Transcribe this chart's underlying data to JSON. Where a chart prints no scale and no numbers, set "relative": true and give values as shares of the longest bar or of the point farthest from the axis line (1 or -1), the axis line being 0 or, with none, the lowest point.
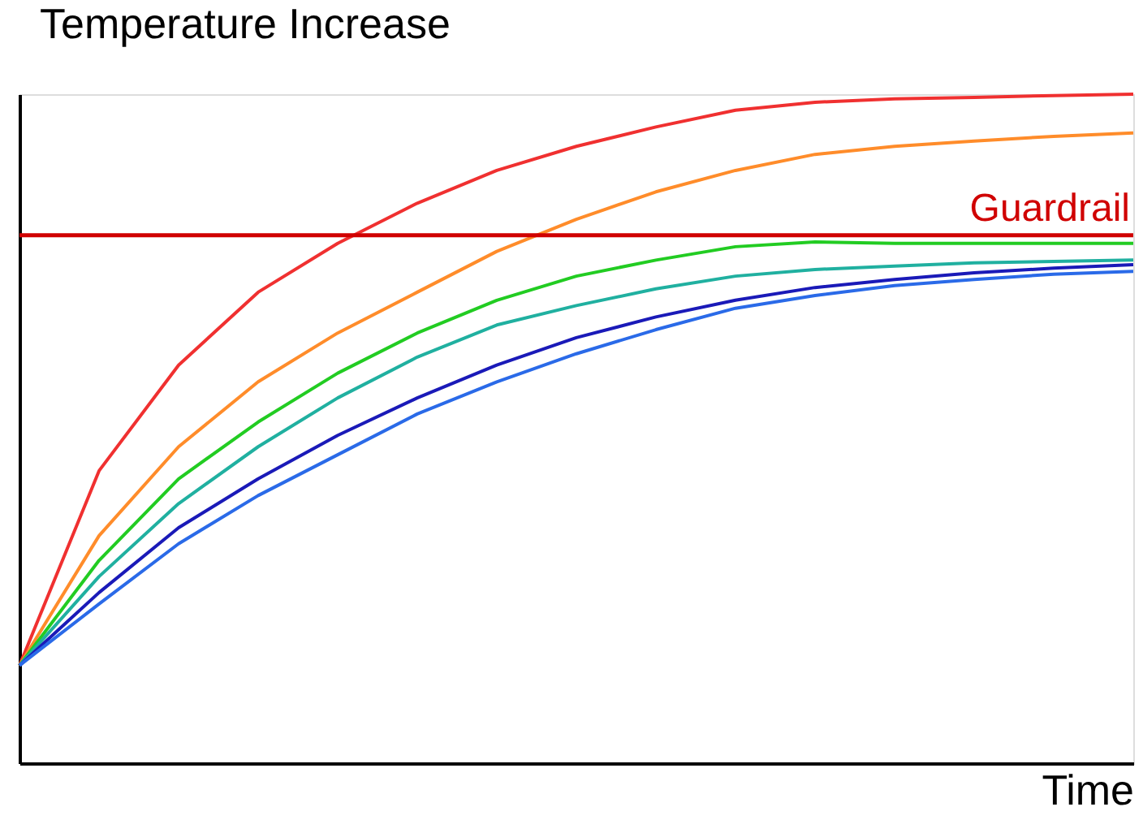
{
  "chart_data": {
    "type": "line",
    "relative": true,
    "ylabel": "Temperature Increase",
    "xlabel": "Time",
    "grid": false,
    "marker": "none",
    "line_style": "solid",
    "categories": [
      null,
      null,
      null,
      null,
      null,
      null,
      null,
      null,
      null,
      null,
      null,
      null,
      null,
      null,
      null
    ],
    "series": [
      {
        "color": "#f03030",
        "values": [
          0.146,
          0.437,
          0.595,
          0.704,
          0.777,
          0.837,
          0.886,
          0.922,
          0.951,
          0.976,
          0.988,
          0.993,
          0.995,
          0.998,
          1.0
        ]
      },
      {
        "color": "#ff8c2a",
        "values": [
          0.146,
          0.34,
          0.473,
          0.57,
          0.643,
          0.704,
          0.765,
          0.813,
          0.854,
          0.886,
          0.91,
          0.922,
          0.93,
          0.937,
          0.942
        ]
      },
      {
        "color": "#22cc22",
        "values": [
          0.146,
          0.303,
          0.425,
          0.51,
          0.583,
          0.643,
          0.692,
          0.728,
          0.752,
          0.772,
          0.779,
          0.777,
          0.777,
          0.777,
          0.777
        ]
      },
      {
        "color": "#20b0a0",
        "values": [
          0.146,
          0.279,
          0.388,
          0.473,
          0.546,
          0.607,
          0.655,
          0.684,
          0.709,
          0.728,
          0.738,
          0.743,
          0.748,
          0.75,
          0.752
        ]
      },
      {
        "color": "#1a1ab8",
        "values": [
          0.146,
          0.255,
          0.352,
          0.425,
          0.49,
          0.546,
          0.595,
          0.636,
          0.667,
          0.692,
          0.711,
          0.723,
          0.733,
          0.74,
          0.745
        ]
      },
      {
        "color": "#2a6ae8",
        "values": [
          0.146,
          0.238,
          0.328,
          0.4,
          0.461,
          0.522,
          0.57,
          0.612,
          0.648,
          0.68,
          0.699,
          0.714,
          0.723,
          0.731,
          0.735
        ]
      }
    ],
    "ref_lines": [
      {
        "axis": "y",
        "value": 0.789,
        "label": "Guardrail",
        "color": "#d00000",
        "line_style": "solid"
      }
    ]
  }
}
